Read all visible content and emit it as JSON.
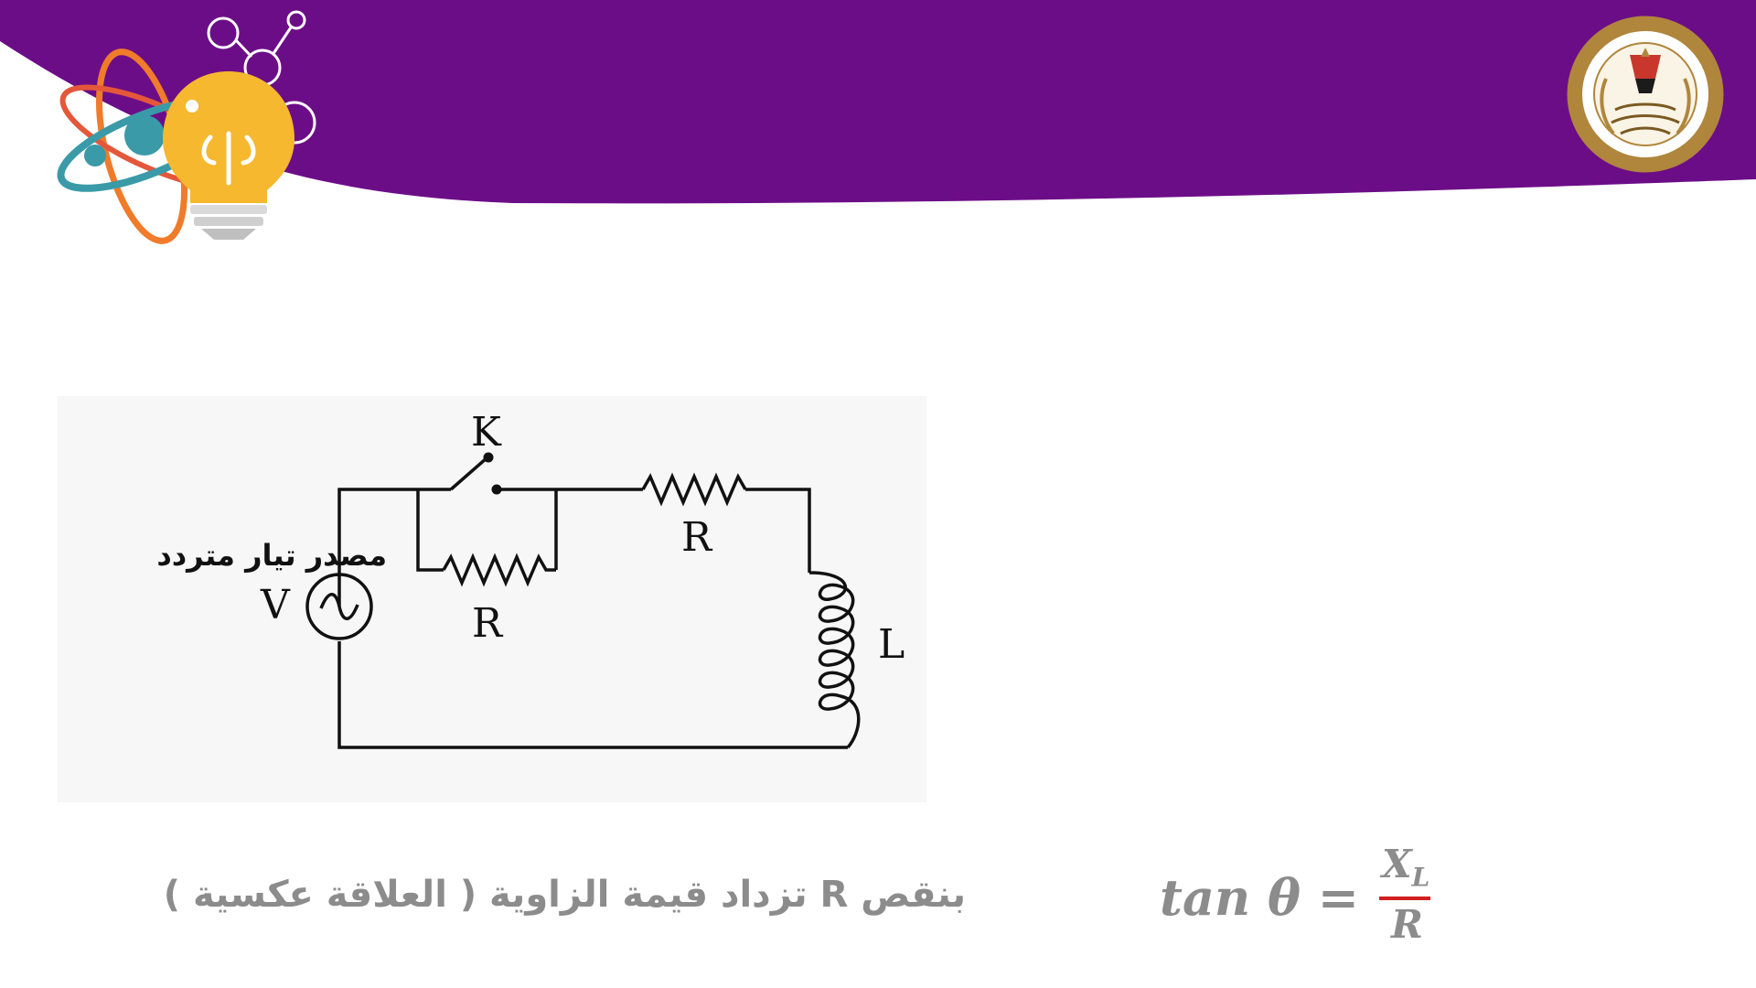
{
  "diagram": {
    "switch_label": "K",
    "top_resistor_label": "R",
    "parallel_resistor_label": "R",
    "inductor_label": "L",
    "source_label": "V",
    "source_text": "مصدر تيار متردد"
  },
  "note": "بنقص R تزداد قيمة الزاوية ( العلاقة عكسية )",
  "formula": {
    "lhs": "tan θ =",
    "numerator": "X",
    "numerator_subscript": "L",
    "denominator": "R"
  },
  "colors": {
    "header_purple": "#6c0d88",
    "note_gray": "#8c8c8c",
    "fraction_bar": "#d21f1f",
    "bulb_yellow": "#f5b82e",
    "atom_orange": "#f07b2a",
    "atom_teal": "#3a9aa8",
    "seal_gold": "#b0863c"
  },
  "icons": [
    "lightbulb-atom-logo",
    "ministry-of-education-seal"
  ]
}
